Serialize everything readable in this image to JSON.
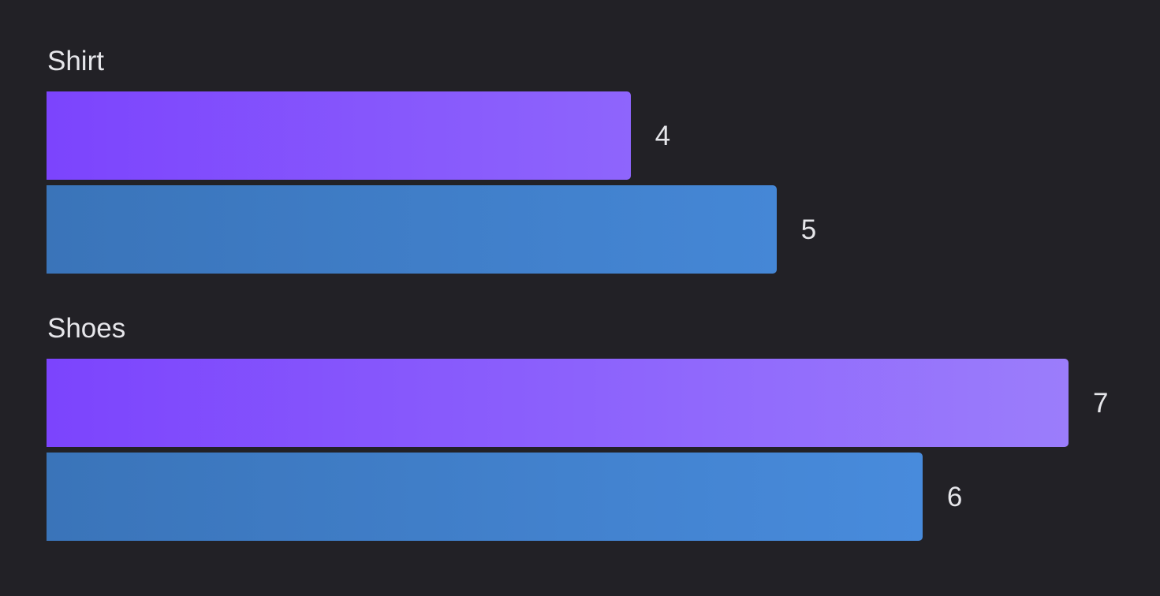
{
  "chart_data": {
    "type": "bar",
    "orientation": "horizontal",
    "categories": [
      "Shirt",
      "Shoes"
    ],
    "series": [
      {
        "values": [
          4,
          7
        ],
        "color_start": "#7c44fd",
        "color_end": "#9b7dfb"
      },
      {
        "values": [
          5,
          6
        ],
        "color_start": "#3a74b9",
        "color_end": "#4a8fe2"
      }
    ],
    "xlim": [
      0,
      7
    ],
    "grid": false,
    "axes_visible": false
  }
}
